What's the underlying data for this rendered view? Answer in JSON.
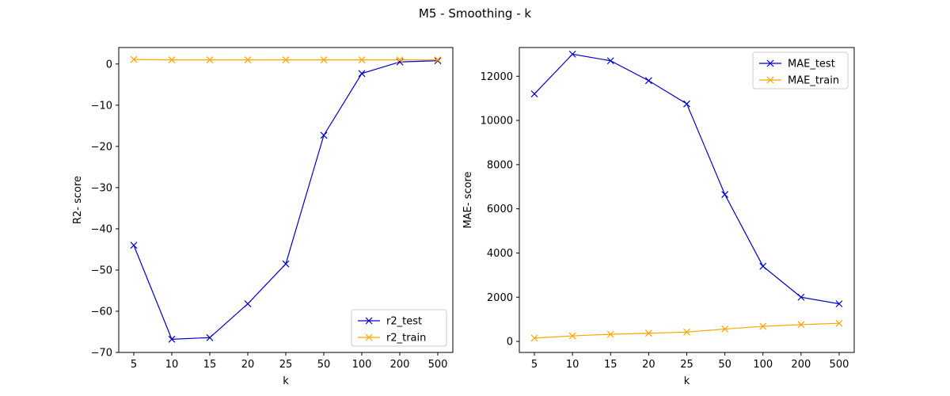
{
  "figure": {
    "suptitle": "M5 - Smoothing - k"
  },
  "colors": {
    "test": "#0000cd",
    "train": "#ffa500"
  },
  "chart_data": [
    {
      "type": "line",
      "categories": [
        "5",
        "10",
        "15",
        "20",
        "25",
        "50",
        "100",
        "200",
        "500"
      ],
      "xlabel": "k",
      "ylabel": "R2- score",
      "ylim": [
        -70,
        4
      ],
      "yticks": [
        0,
        -10,
        -20,
        -30,
        -40,
        -50,
        -60,
        -70
      ],
      "legend_position": "lower-right",
      "grid": false,
      "series": [
        {
          "name": "r2_test",
          "color": "#0000cd",
          "marker": "x",
          "values": [
            -44,
            -66.8,
            -66.4,
            -58.2,
            -48.5,
            -17.3,
            -2.3,
            0.5,
            0.8
          ]
        },
        {
          "name": "r2_train",
          "color": "#ffa500",
          "marker": "x",
          "values": [
            1.1,
            1.0,
            1.0,
            1.0,
            1.0,
            1.0,
            1.0,
            1.0,
            1.0
          ]
        }
      ]
    },
    {
      "type": "line",
      "categories": [
        "5",
        "10",
        "15",
        "20",
        "25",
        "50",
        "100",
        "200",
        "500"
      ],
      "xlabel": "k",
      "ylabel": "MAE- score",
      "ylim": [
        -500,
        13300
      ],
      "yticks": [
        0,
        2000,
        4000,
        6000,
        8000,
        10000,
        12000
      ],
      "legend_position": "upper-right",
      "grid": false,
      "series": [
        {
          "name": "MAE_test",
          "color": "#0000cd",
          "marker": "x",
          "values": [
            11200,
            13000,
            12700,
            11800,
            10750,
            6650,
            3400,
            2000,
            1700
          ]
        },
        {
          "name": "MAE_train",
          "color": "#ffa500",
          "marker": "x",
          "values": [
            150,
            250,
            320,
            370,
            420,
            560,
            680,
            760,
            820
          ]
        }
      ]
    }
  ]
}
